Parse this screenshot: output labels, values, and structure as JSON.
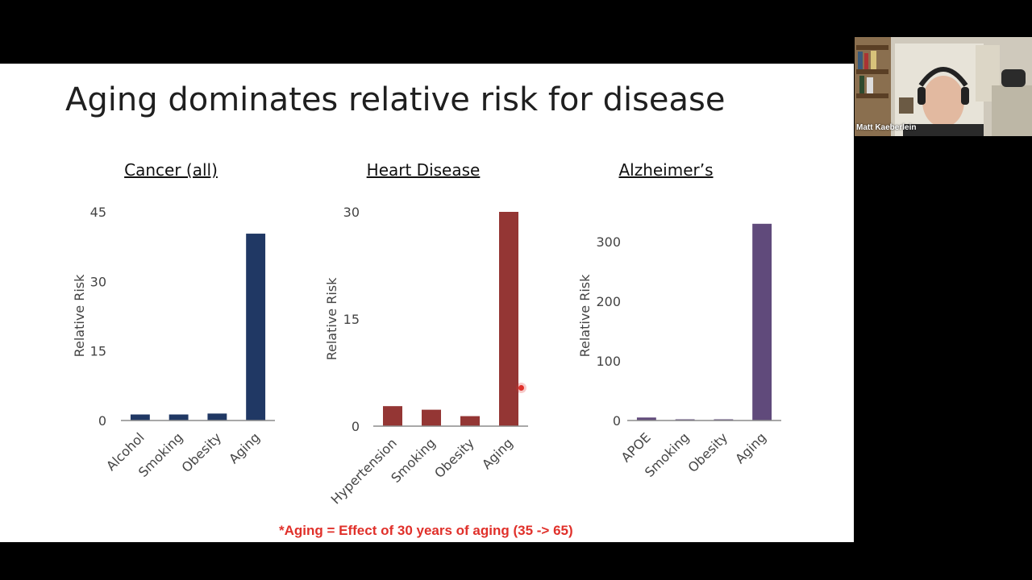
{
  "slide": {
    "title": "Aging dominates relative risk for disease",
    "footnote": "*Aging = Effect of 30 years of aging (35 -> 65)"
  },
  "video": {
    "participant_name": "Matt Kaeberlein"
  },
  "colors": {
    "cancer": "#203864",
    "heart": "#943634",
    "alzheimers": "#604a7b",
    "footnote": "#e0302a"
  },
  "chart_data": [
    {
      "type": "bar",
      "title": "Cancer (all)",
      "ylabel": "Relative Risk",
      "categories": [
        "Alcohol",
        "Smoking",
        "Obesity",
        "Aging"
      ],
      "values": [
        1.3,
        1.3,
        1.5,
        40.3
      ],
      "ylim": [
        0,
        45
      ],
      "yticks": [
        "0",
        "15",
        "30",
        "45"
      ],
      "color": "#203864",
      "grid": false
    },
    {
      "type": "bar",
      "title": "Heart Disease",
      "ylabel": "Relative Risk",
      "categories": [
        "Hypertension",
        "Smoking",
        "Obesity",
        "Aging"
      ],
      "values": [
        2.8,
        2.3,
        1.4,
        30
      ],
      "ylim": [
        0,
        30
      ],
      "yticks": [
        "0",
        "15",
        "30"
      ],
      "color": "#943634",
      "grid": false
    },
    {
      "type": "bar",
      "title": "Alzheimer’s",
      "ylabel": "Relative Risk",
      "categories": [
        "APOE",
        "Smoking",
        "Obesity",
        "Aging"
      ],
      "values": [
        5,
        2,
        2,
        330
      ],
      "ylim": [
        0,
        350
      ],
      "yticks": [
        "0",
        "100",
        "200",
        "300"
      ],
      "color": "#604a7b",
      "grid": false
    }
  ]
}
